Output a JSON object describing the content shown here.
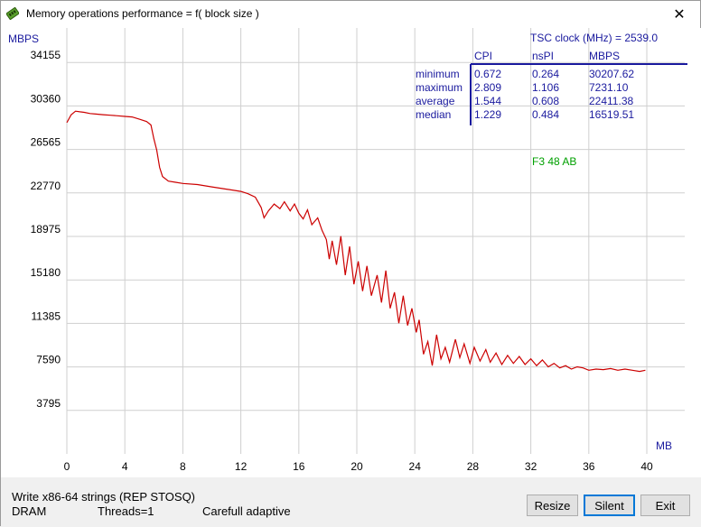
{
  "window": {
    "title": "Memory operations performance = f( block size )",
    "close_symbol": "✕"
  },
  "chart_data": {
    "type": "line",
    "ylabel": "MBPS",
    "xlabel": "MB",
    "xlim": [
      0,
      42
    ],
    "ylim": [
      0,
      36500
    ],
    "x_ticks": [
      "0",
      "4",
      "8",
      "12",
      "16",
      "20",
      "24",
      "28",
      "32",
      "36",
      "40"
    ],
    "y_ticks": [
      "3795",
      "7590",
      "11385",
      "15180",
      "18975",
      "22770",
      "26565",
      "30360",
      "34155"
    ],
    "series": [
      {
        "color": "#cc0000",
        "points": [
          [
            0.0,
            28900
          ],
          [
            0.3,
            29600
          ],
          [
            0.6,
            29900
          ],
          [
            0.9,
            29850
          ],
          [
            1.2,
            29800
          ],
          [
            1.6,
            29700
          ],
          [
            2.0,
            29650
          ],
          [
            2.5,
            29600
          ],
          [
            3.0,
            29550
          ],
          [
            3.5,
            29500
          ],
          [
            4.0,
            29450
          ],
          [
            4.5,
            29400
          ],
          [
            5.0,
            29200
          ],
          [
            5.5,
            29000
          ],
          [
            5.8,
            28700
          ],
          [
            6.0,
            27500
          ],
          [
            6.2,
            26500
          ],
          [
            6.4,
            25000
          ],
          [
            6.6,
            24200
          ],
          [
            7.0,
            23800
          ],
          [
            7.5,
            23700
          ],
          [
            8.0,
            23600
          ],
          [
            9.0,
            23500
          ],
          [
            10.0,
            23300
          ],
          [
            11.0,
            23100
          ],
          [
            12.0,
            22900
          ],
          [
            12.5,
            22700
          ],
          [
            13.0,
            22400
          ],
          [
            13.4,
            21500
          ],
          [
            13.6,
            20600
          ],
          [
            13.9,
            21200
          ],
          [
            14.3,
            21800
          ],
          [
            14.7,
            21400
          ],
          [
            15.0,
            22000
          ],
          [
            15.4,
            21200
          ],
          [
            15.7,
            21800
          ],
          [
            16.0,
            21000
          ],
          [
            16.3,
            20500
          ],
          [
            16.6,
            21300
          ],
          [
            16.9,
            20000
          ],
          [
            17.3,
            20600
          ],
          [
            17.6,
            19500
          ],
          [
            17.9,
            18700
          ],
          [
            18.1,
            17000
          ],
          [
            18.3,
            18600
          ],
          [
            18.6,
            16500
          ],
          [
            18.9,
            19000
          ],
          [
            19.2,
            15600
          ],
          [
            19.5,
            18100
          ],
          [
            19.8,
            14800
          ],
          [
            20.1,
            16800
          ],
          [
            20.4,
            14200
          ],
          [
            20.7,
            16400
          ],
          [
            21.0,
            13800
          ],
          [
            21.4,
            15600
          ],
          [
            21.7,
            13200
          ],
          [
            22.0,
            16000
          ],
          [
            22.3,
            12700
          ],
          [
            22.6,
            14100
          ],
          [
            22.9,
            11400
          ],
          [
            23.2,
            13800
          ],
          [
            23.5,
            11200
          ],
          [
            23.8,
            12700
          ],
          [
            24.1,
            10600
          ],
          [
            24.3,
            11700
          ],
          [
            24.6,
            8700
          ],
          [
            24.9,
            9800
          ],
          [
            25.2,
            7700
          ],
          [
            25.5,
            10400
          ],
          [
            25.8,
            8300
          ],
          [
            26.1,
            9300
          ],
          [
            26.4,
            8000
          ],
          [
            26.8,
            10000
          ],
          [
            27.1,
            8400
          ],
          [
            27.4,
            9600
          ],
          [
            27.8,
            7900
          ],
          [
            28.1,
            9300
          ],
          [
            28.5,
            8100
          ],
          [
            28.9,
            9100
          ],
          [
            29.2,
            8000
          ],
          [
            29.6,
            8800
          ],
          [
            30.0,
            7800
          ],
          [
            30.4,
            8600
          ],
          [
            30.8,
            7900
          ],
          [
            31.2,
            8500
          ],
          [
            31.6,
            7800
          ],
          [
            32.0,
            8300
          ],
          [
            32.4,
            7700
          ],
          [
            32.8,
            8200
          ],
          [
            33.2,
            7600
          ],
          [
            33.6,
            7900
          ],
          [
            34.0,
            7500
          ],
          [
            34.4,
            7700
          ],
          [
            34.8,
            7400
          ],
          [
            35.2,
            7600
          ],
          [
            35.6,
            7500
          ],
          [
            36.0,
            7300
          ],
          [
            36.5,
            7400
          ],
          [
            37.0,
            7350
          ],
          [
            37.5,
            7450
          ],
          [
            38.0,
            7300
          ],
          [
            38.5,
            7400
          ],
          [
            39.0,
            7300
          ],
          [
            39.5,
            7200
          ],
          [
            39.9,
            7300
          ]
        ]
      }
    ],
    "grid": true
  },
  "stats": {
    "tsc_clock": "TSC clock (MHz) = 2539.0",
    "columns": [
      "CPI",
      "nsPI",
      "MBPS"
    ],
    "rows": [
      {
        "label": "minimum",
        "cpi": "0.672",
        "nspi": "0.264",
        "mbps": "30207.62"
      },
      {
        "label": "maximum",
        "cpi": "2.809",
        "nspi": "1.106",
        "mbps": "7231.10"
      },
      {
        "label": "average",
        "cpi": "1.544",
        "nspi": "0.608",
        "mbps": "22411.38"
      },
      {
        "label": "median",
        "cpi": "1.229",
        "nspi": "0.484",
        "mbps": "16519.51"
      }
    ],
    "code": "F3  48  AB"
  },
  "status": {
    "operation": "Write x86-64 strings (REP STOSQ)",
    "memory": "DRAM",
    "threads": "Threads=1",
    "mode": "Carefull adaptive"
  },
  "buttons": {
    "resize": "Resize",
    "silent": "Silent",
    "exit": "Exit"
  },
  "colors": {
    "axis_text": "#1a1a9e",
    "stats_green": "#00a000",
    "line": "#cc0000",
    "grid": "#cfcfcf"
  }
}
